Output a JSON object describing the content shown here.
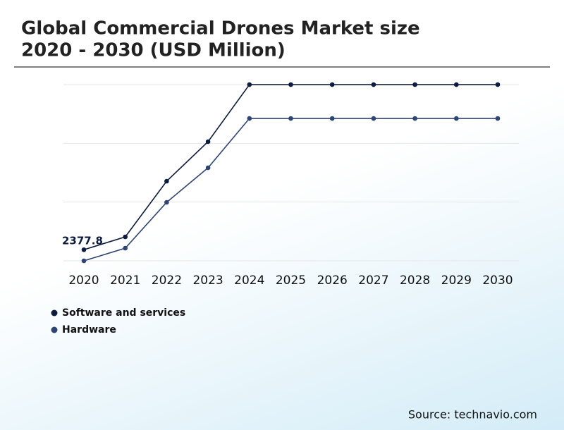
{
  "chart_data": {
    "type": "line",
    "title": "Global Commercial Drones Market size",
    "subtitle": "2020 - 2030 (USD Million)",
    "categories": [
      "2020",
      "2021",
      "2022",
      "2023",
      "2024",
      "2025",
      "2026",
      "2027",
      "2028",
      "2029",
      "2030"
    ],
    "series": [
      {
        "name": "Software and services",
        "color": "#0d1b3e",
        "values": [
          2377.8,
          2816,
          4712,
          6056,
          8000,
          8000,
          8000,
          8000,
          8000,
          8000,
          8000
        ]
      },
      {
        "name": "Hardware",
        "color": "#2e4473",
        "values": [
          2000,
          2432,
          3992,
          5168,
          6848,
          6848,
          6848,
          6848,
          6848,
          6848,
          6848
        ]
      }
    ],
    "ylim": [
      1850,
      8250
    ],
    "yticks": [
      2000,
      4000,
      6000,
      8000
    ],
    "grid": true,
    "source": "Source: technavio.com"
  }
}
